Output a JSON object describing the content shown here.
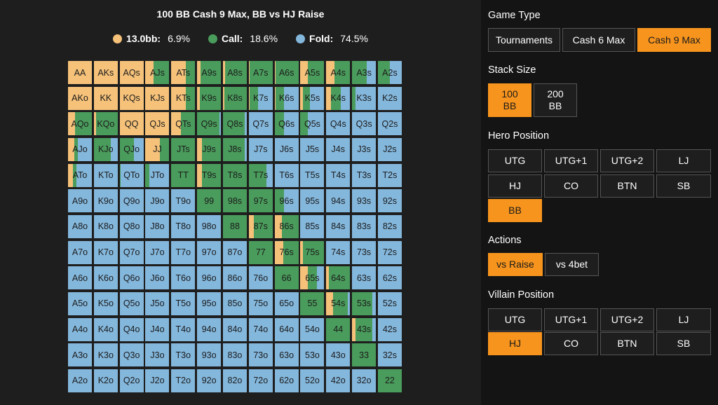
{
  "chart_title": "100 BB Cash 9 Max, BB vs HJ Raise",
  "legend": [
    {
      "label": "13.0bb:",
      "value": "6.9%",
      "color": "#f6c27a",
      "icon": "raise-dot-icon"
    },
    {
      "label": "Call:",
      "value": "18.6%",
      "color": "#4a9c5c",
      "icon": "call-dot-icon"
    },
    {
      "label": "Fold:",
      "value": "74.5%",
      "color": "#84b7dc",
      "icon": "fold-dot-icon"
    }
  ],
  "colors": {
    "raise": "#f6c27a",
    "call": "#4a9c5c",
    "fold": "#84b7dc",
    "accent": "#f7941d"
  },
  "grid": {
    "hands": [
      [
        "AA",
        "AKs",
        "AQs",
        "AJs",
        "ATs",
        "A9s",
        "A8s",
        "A7s",
        "A6s",
        "A5s",
        "A4s",
        "A3s",
        "A2s"
      ],
      [
        "AKo",
        "KK",
        "KQs",
        "KJs",
        "KTs",
        "K9s",
        "K8s",
        "K7s",
        "K6s",
        "K5s",
        "K4s",
        "K3s",
        "K2s"
      ],
      [
        "AQo",
        "KQo",
        "QQ",
        "QJs",
        "QTs",
        "Q9s",
        "Q8s",
        "Q7s",
        "Q6s",
        "Q5s",
        "Q4s",
        "Q3s",
        "Q2s"
      ],
      [
        "AJo",
        "KJo",
        "QJo",
        "JJ",
        "JTs",
        "J9s",
        "J8s",
        "J7s",
        "J6s",
        "J5s",
        "J4s",
        "J3s",
        "J2s"
      ],
      [
        "ATo",
        "KTo",
        "QTo",
        "JTo",
        "TT",
        "T9s",
        "T8s",
        "T7s",
        "T6s",
        "T5s",
        "T4s",
        "T3s",
        "T2s"
      ],
      [
        "A9o",
        "K9o",
        "Q9o",
        "J9o",
        "T9o",
        "99",
        "98s",
        "97s",
        "96s",
        "95s",
        "94s",
        "93s",
        "92s"
      ],
      [
        "A8o",
        "K8o",
        "Q8o",
        "J8o",
        "T8o",
        "98o",
        "88",
        "87s",
        "86s",
        "85s",
        "84s",
        "83s",
        "82s"
      ],
      [
        "A7o",
        "K7o",
        "Q7o",
        "J7o",
        "T7o",
        "97o",
        "87o",
        "77",
        "76s",
        "75s",
        "74s",
        "73s",
        "72s"
      ],
      [
        "A6o",
        "K6o",
        "Q6o",
        "J6o",
        "T6o",
        "96o",
        "86o",
        "76o",
        "66",
        "65s",
        "64s",
        "63s",
        "62s"
      ],
      [
        "A5o",
        "K5o",
        "Q5o",
        "J5o",
        "T5o",
        "95o",
        "85o",
        "75o",
        "65o",
        "55",
        "54s",
        "53s",
        "52s"
      ],
      [
        "A4o",
        "K4o",
        "Q4o",
        "J4o",
        "T4o",
        "94o",
        "84o",
        "74o",
        "64o",
        "54o",
        "44",
        "43s",
        "42s"
      ],
      [
        "A3o",
        "K3o",
        "Q3o",
        "J3o",
        "T3o",
        "93o",
        "83o",
        "73o",
        "63o",
        "53o",
        "43o",
        "33",
        "32s"
      ],
      [
        "A2o",
        "K2o",
        "Q2o",
        "J2o",
        "T2o",
        "92o",
        "82o",
        "72o",
        "62o",
        "52o",
        "42o",
        "32o",
        "22"
      ]
    ],
    "raise": [
      [
        1,
        1,
        1,
        0.35,
        0.6,
        0.15,
        0.1,
        0.05,
        0.05,
        0.3,
        0.35,
        0,
        0
      ],
      [
        1,
        1,
        1,
        1,
        0.6,
        0.1,
        0.05,
        0.05,
        0.05,
        0.1,
        0.2,
        0,
        0
      ],
      [
        0.3,
        0.1,
        1,
        1,
        0.4,
        0,
        0,
        0,
        0,
        0,
        0,
        0,
        0
      ],
      [
        0.25,
        0,
        0,
        0.6,
        0,
        0.2,
        0,
        0,
        0,
        0,
        0,
        0,
        0
      ],
      [
        0.2,
        0,
        0,
        0,
        0,
        0.2,
        0,
        0,
        0,
        0,
        0,
        0,
        0
      ],
      [
        0,
        0,
        0,
        0,
        0,
        0,
        0,
        0,
        0,
        0,
        0,
        0,
        0
      ],
      [
        0,
        0,
        0,
        0,
        0,
        0,
        0,
        0.2,
        0.3,
        0,
        0,
        0,
        0
      ],
      [
        0,
        0,
        0,
        0,
        0,
        0,
        0,
        0,
        0.35,
        0.1,
        0,
        0,
        0
      ],
      [
        0,
        0,
        0,
        0,
        0,
        0,
        0,
        0,
        0,
        0.3,
        0.1,
        0,
        0
      ],
      [
        0,
        0,
        0,
        0,
        0,
        0,
        0,
        0,
        0,
        0,
        0.3,
        0,
        0
      ],
      [
        0,
        0,
        0,
        0,
        0,
        0,
        0,
        0,
        0,
        0,
        0,
        0.15,
        0
      ],
      [
        0,
        0,
        0,
        0,
        0,
        0,
        0,
        0,
        0,
        0,
        0,
        0,
        0
      ],
      [
        0,
        0,
        0,
        0,
        0,
        0,
        0,
        0,
        0,
        0,
        0,
        0,
        0
      ]
    ],
    "call": [
      [
        0,
        0,
        0,
        0.65,
        0.4,
        0.85,
        0.9,
        0.95,
        0.95,
        0.7,
        0.65,
        0.6,
        0.5
      ],
      [
        0,
        0,
        0,
        0,
        0.4,
        0.9,
        0.95,
        0.35,
        0.35,
        0.3,
        0.4,
        0.15,
        0
      ],
      [
        0.7,
        0.9,
        0,
        0,
        0.6,
        0.95,
        0.9,
        0,
        0.4,
        0.3,
        0,
        0,
        0
      ],
      [
        0.15,
        0.7,
        0.6,
        0.4,
        1,
        0.8,
        0.9,
        0,
        0,
        0,
        0,
        0,
        0
      ],
      [
        0.15,
        0,
        0.05,
        0.15,
        1,
        0.8,
        1,
        0.75,
        0,
        0,
        0,
        0,
        0
      ],
      [
        0,
        0,
        0,
        0,
        0,
        1,
        1,
        1,
        0.4,
        0,
        0,
        0,
        0
      ],
      [
        0,
        0,
        0,
        0,
        0,
        0,
        1,
        0.8,
        0.7,
        0,
        0,
        0,
        0
      ],
      [
        0,
        0,
        0,
        0,
        0,
        0,
        0,
        1,
        0.65,
        0.9,
        0,
        0,
        0
      ],
      [
        0,
        0,
        0,
        0,
        0,
        0,
        0,
        0,
        1,
        0.4,
        0.9,
        0,
        0
      ],
      [
        0,
        0,
        0,
        0,
        0,
        0,
        0,
        0,
        0,
        1,
        0.6,
        0.85,
        0
      ],
      [
        0,
        0,
        0,
        0,
        0,
        0,
        0,
        0,
        0,
        0,
        1,
        0.7,
        0
      ],
      [
        0,
        0,
        0,
        0,
        0,
        0,
        0,
        0,
        0,
        0,
        0,
        1,
        0
      ],
      [
        0,
        0,
        0,
        0,
        0,
        0,
        0,
        0,
        0,
        0,
        0,
        0,
        1
      ]
    ]
  },
  "sidebar": {
    "game_type": {
      "title": "Game Type",
      "options": [
        "Tournaments",
        "Cash 6 Max",
        "Cash 9 Max"
      ],
      "selected": "Cash 9 Max"
    },
    "stack_size": {
      "title": "Stack Size",
      "options": [
        "100\nBB",
        "200\nBB"
      ],
      "selected": "100\nBB"
    },
    "hero_position": {
      "title": "Hero Position",
      "options": [
        "UTG",
        "UTG+1",
        "UTG+2",
        "LJ",
        "HJ",
        "CO",
        "BTN",
        "SB",
        "BB"
      ],
      "selected": "BB"
    },
    "actions": {
      "title": "Actions",
      "options": [
        "vs Raise",
        "vs 4bet"
      ],
      "selected": "vs Raise"
    },
    "villain_position": {
      "title": "Villain Position",
      "options": [
        "UTG",
        "UTG+1",
        "UTG+2",
        "LJ",
        "HJ",
        "CO",
        "BTN",
        "SB"
      ],
      "selected": "HJ"
    }
  }
}
